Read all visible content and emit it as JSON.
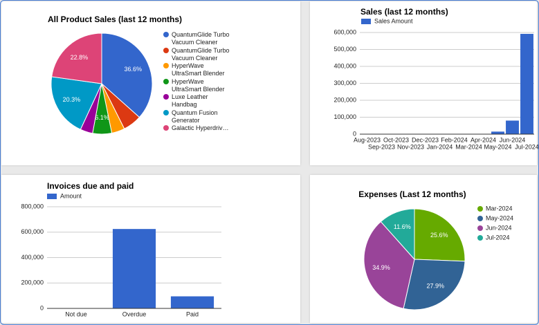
{
  "chart_data": [
    {
      "type": "pie",
      "title": "All Product Sales (last 12 months)",
      "categories": [
        "QuantumGlide Turbo Vacuum Cleaner",
        "QuantumGlide Turbo Vacuum Cleaner",
        "HyperWave UltraSmart Blender",
        "HyperWave UltraSmart Blender",
        "Luxe Leather Handbag",
        "Quantum Fusion Generator",
        "Galactic Hyperdriv…"
      ],
      "values": [
        36.6,
        6.0,
        4.2,
        6.1,
        4.0,
        20.3,
        22.8
      ],
      "value_labels": [
        "36.6%",
        null,
        null,
        "6.1%",
        null,
        "20.3%",
        "22.8%"
      ],
      "colors": [
        "#3366cc",
        "#dc3912",
        "#ff9900",
        "#109618",
        "#990099",
        "#0099c6",
        "#dd4477"
      ]
    },
    {
      "type": "bar",
      "title": "Sales (last 12 months)",
      "categories": [
        "Aug-2023",
        "Sep-2023",
        "Oct-2023",
        "Nov-2023",
        "Dec-2023",
        "Jan-2024",
        "Feb-2024",
        "Mar-2024",
        "Apr-2024",
        "May-2024",
        "Jun-2024",
        "Jul-2024"
      ],
      "series": [
        {
          "name": "Sales Amount",
          "color": "#3366cc",
          "values": [
            0,
            0,
            0,
            0,
            0,
            0,
            0,
            0,
            0,
            15000,
            80000,
            592000
          ]
        }
      ],
      "ylim": [
        0,
        600000
      ],
      "yticks": [
        0,
        {
          "value": 100000,
          "label": "100,000"
        },
        {
          "value": 200000,
          "label": "200,000"
        },
        {
          "value": 300000,
          "label": "300,000"
        },
        {
          "value": 400000,
          "label": "400,000"
        },
        {
          "value": 500000,
          "label": "500,000"
        },
        {
          "value": 600000,
          "label": "600,000"
        }
      ],
      "grid": true
    },
    {
      "type": "bar",
      "title": "Invoices due and paid",
      "categories": [
        "Not due",
        "Overdue",
        "Paid"
      ],
      "series": [
        {
          "name": "Amount",
          "color": "#3366cc",
          "values": [
            0,
            625000,
            95000
          ]
        }
      ],
      "ylim": [
        0,
        800000
      ],
      "yticks": [
        0,
        {
          "value": 200000,
          "label": "200,000"
        },
        {
          "value": 400000,
          "label": "400,000"
        },
        {
          "value": 600000,
          "label": "600,000"
        },
        {
          "value": 800000,
          "label": "800,000"
        }
      ],
      "grid": true
    },
    {
      "type": "pie",
      "title": "Expenses (Last 12 months)",
      "categories": [
        "Mar-2024",
        "May-2024",
        "Jun-2024",
        "Jul-2024"
      ],
      "values": [
        25.6,
        27.9,
        34.9,
        11.6
      ],
      "value_labels": [
        "25.6%",
        "27.9%",
        "34.9%",
        "11.6%"
      ],
      "colors": [
        "#66aa00",
        "#316395",
        "#994499",
        "#22aa99"
      ]
    }
  ]
}
